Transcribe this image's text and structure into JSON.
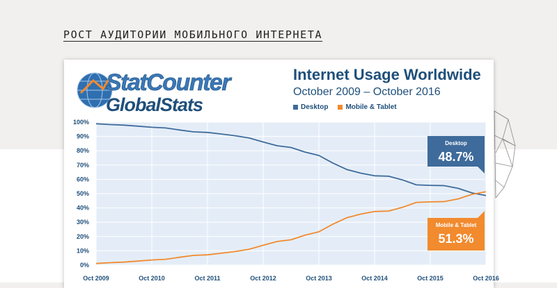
{
  "page": {
    "heading": "РОСТ АУДИТОРИИ МОБИЛЬНОГО ИНТЕРНЕТА"
  },
  "logo": {
    "word1": "StatCounter",
    "word2": "GlobalStats"
  },
  "chart_data": {
    "type": "line",
    "title": "Internet Usage Worldwide",
    "subtitle": "October 2009 – October 2016",
    "ylim": [
      0,
      100
    ],
    "y_ticks": [
      {
        "value": 0,
        "label": "0%"
      },
      {
        "value": 10,
        "label": "10%"
      },
      {
        "value": 20,
        "label": "20%"
      },
      {
        "value": 30,
        "label": "30%"
      },
      {
        "value": 40,
        "label": "40%"
      },
      {
        "value": 50,
        "label": "50%"
      },
      {
        "value": 60,
        "label": "60%"
      },
      {
        "value": 70,
        "label": "70%"
      },
      {
        "value": 80,
        "label": "80%"
      },
      {
        "value": 90,
        "label": "90%"
      },
      {
        "value": 100,
        "label": "100%"
      }
    ],
    "x_ticks": [
      {
        "value": "2009-10",
        "label": "Oct 2009"
      },
      {
        "value": "2010-10",
        "label": "Oct 2010"
      },
      {
        "value": "2011-10",
        "label": "Oct 2011"
      },
      {
        "value": "2012-10",
        "label": "Oct 2012"
      },
      {
        "value": "2013-10",
        "label": "Oct 2013"
      },
      {
        "value": "2014-10",
        "label": "Oct 2014"
      },
      {
        "value": "2015-10",
        "label": "Oct 2015"
      },
      {
        "value": "2016-10",
        "label": "Oct 2016"
      }
    ],
    "x_range": [
      "2009-10",
      "2016-10"
    ],
    "grid": true,
    "legend_position": "top",
    "series": [
      {
        "name": "Desktop",
        "color": "#3e6b9b",
        "callout_label": "Desktop",
        "callout_value": "48.7%",
        "points": [
          [
            "2009-10",
            98.9
          ],
          [
            "2010-01",
            98.3
          ],
          [
            "2010-04",
            97.9
          ],
          [
            "2010-07",
            97.2
          ],
          [
            "2010-10",
            96.4
          ],
          [
            "2011-01",
            95.9
          ],
          [
            "2011-04",
            94.5
          ],
          [
            "2011-07",
            93.2
          ],
          [
            "2011-10",
            92.8
          ],
          [
            "2012-01",
            91.7
          ],
          [
            "2012-04",
            90.5
          ],
          [
            "2012-07",
            88.9
          ],
          [
            "2012-10",
            86.1
          ],
          [
            "2013-01",
            83.5
          ],
          [
            "2013-04",
            82.3
          ],
          [
            "2013-07",
            79.1
          ],
          [
            "2013-10",
            76.7
          ],
          [
            "2014-01",
            71.4
          ],
          [
            "2014-04",
            66.9
          ],
          [
            "2014-07",
            64.3
          ],
          [
            "2014-10",
            62.5
          ],
          [
            "2015-01",
            62.2
          ],
          [
            "2015-04",
            59.6
          ],
          [
            "2015-07",
            56.1
          ],
          [
            "2015-10",
            55.8
          ],
          [
            "2016-01",
            55.6
          ],
          [
            "2016-04",
            53.7
          ],
          [
            "2016-07",
            50.5
          ],
          [
            "2016-10",
            48.7
          ]
        ]
      },
      {
        "name": "Mobile & Tablet",
        "color": "#f28a2e",
        "callout_label": "Mobile & Tablet",
        "callout_value": "51.3%",
        "points": [
          [
            "2009-10",
            1.1
          ],
          [
            "2010-01",
            1.7
          ],
          [
            "2010-04",
            2.1
          ],
          [
            "2010-07",
            2.8
          ],
          [
            "2010-10",
            3.6
          ],
          [
            "2011-01",
            4.1
          ],
          [
            "2011-04",
            5.5
          ],
          [
            "2011-07",
            6.8
          ],
          [
            "2011-10",
            7.2
          ],
          [
            "2012-01",
            8.3
          ],
          [
            "2012-04",
            9.5
          ],
          [
            "2012-07",
            11.1
          ],
          [
            "2012-10",
            13.9
          ],
          [
            "2013-01",
            16.5
          ],
          [
            "2013-04",
            17.7
          ],
          [
            "2013-07",
            20.9
          ],
          [
            "2013-10",
            23.3
          ],
          [
            "2014-01",
            28.6
          ],
          [
            "2014-04",
            33.1
          ],
          [
            "2014-07",
            35.7
          ],
          [
            "2014-10",
            37.5
          ],
          [
            "2015-01",
            37.8
          ],
          [
            "2015-04",
            40.4
          ],
          [
            "2015-07",
            43.9
          ],
          [
            "2015-10",
            44.2
          ],
          [
            "2016-01",
            44.4
          ],
          [
            "2016-04",
            46.3
          ],
          [
            "2016-07",
            49.5
          ],
          [
            "2016-10",
            51.3
          ]
        ]
      }
    ]
  }
}
